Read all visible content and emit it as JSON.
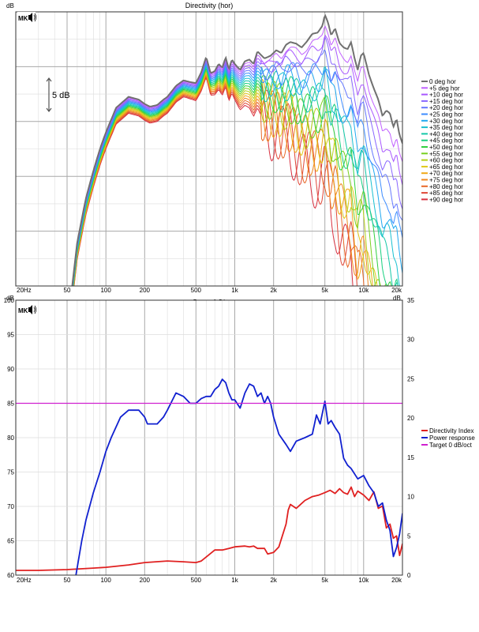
{
  "colors": {
    "background": "#ffffff",
    "plot_bg": "#ffffff",
    "grid_major": "#a8a8a8",
    "grid_minor": "#dcdcdc",
    "frame": "#333333"
  },
  "watermark_label": "MK",
  "scale_marker": {
    "label": "5 dB",
    "icon": "double-arrow-icon"
  },
  "chart_data": [
    {
      "type": "line",
      "title": "Directivity (hor)",
      "y_unit_label": "dB",
      "x_scale": "log",
      "xlim": [
        20,
        20000
      ],
      "ylim": [
        -40,
        10
      ],
      "x_tick_labels": [
        {
          "v": 20,
          "label": "20Hz"
        },
        {
          "v": 50,
          "label": "50"
        },
        {
          "v": 100,
          "label": "100"
        },
        {
          "v": 200,
          "label": "200"
        },
        {
          "v": 500,
          "label": "500"
        },
        {
          "v": 1000,
          "label": "1k"
        },
        {
          "v": 2000,
          "label": "2k"
        },
        {
          "v": 5000,
          "label": "5k"
        },
        {
          "v": 10000,
          "label": "10k"
        },
        {
          "v": 20000,
          "label": "20k"
        }
      ],
      "grid": true,
      "legend_position": "right",
      "reference_series": {
        "x": [
          50,
          60,
          70,
          80,
          90,
          100,
          120,
          150,
          180,
          200,
          220,
          250,
          280,
          300,
          350,
          400,
          450,
          500,
          550,
          600,
          650,
          700,
          750,
          800,
          850,
          900,
          950,
          1000,
          1100,
          1200,
          1300,
          1400,
          1500,
          1700,
          1900,
          2100,
          2300,
          2500,
          2700,
          3000,
          3300,
          3600,
          4000,
          4400,
          4800,
          5000,
          5300,
          5600,
          6000,
          6500,
          7000,
          7500,
          8000,
          8500,
          9000,
          9500,
          10000,
          11000,
          12000,
          13000,
          14000,
          15000,
          16000,
          17000,
          18000,
          19000,
          20000
        ],
        "values": [
          -48,
          -32,
          -24,
          -19,
          -15,
          -12,
          -7.5,
          -5.5,
          -6,
          -6.8,
          -7.3,
          -7,
          -6,
          -5.5,
          -3.5,
          -2.5,
          -2.8,
          -3,
          -1,
          1.8,
          -1.2,
          -0.8,
          0.5,
          -0.2,
          1.7,
          -0.5,
          1.3,
          0.5,
          -0.6,
          1,
          1.3,
          0.5,
          2.8,
          1.5,
          2,
          3,
          2.5,
          4,
          4.5,
          4.2,
          3.5,
          4.5,
          6,
          6.2,
          7.5,
          9.5,
          8,
          5.7,
          7,
          4.3,
          3.5,
          3.2,
          4.5,
          1.5,
          -0.6,
          2,
          2.5,
          -1.5,
          -4,
          -6,
          -9,
          -8,
          -8.5,
          -11,
          -9.5,
          -12.5,
          -14
        ]
      },
      "series": [
        {
          "name": "0 deg hor",
          "color": "#707070"
        },
        {
          "name": "+5 deg hor",
          "color": "#c060ff"
        },
        {
          "name": "+10 deg hor",
          "color": "#a858ff"
        },
        {
          "name": "+15 deg hor",
          "color": "#8866ff"
        },
        {
          "name": "+20 deg hor",
          "color": "#6478ff"
        },
        {
          "name": "+25 deg hor",
          "color": "#3c8cff"
        },
        {
          "name": "+30 deg hor",
          "color": "#20a8f0"
        },
        {
          "name": "+35 deg hor",
          "color": "#18c0d0"
        },
        {
          "name": "+40 deg hor",
          "color": "#14c8a8"
        },
        {
          "name": "+45 deg hor",
          "color": "#18d080"
        },
        {
          "name": "+50 deg hor",
          "color": "#30d040"
        },
        {
          "name": "+55 deg hor",
          "color": "#78d020"
        },
        {
          "name": "+60 deg hor",
          "color": "#b4d018"
        },
        {
          "name": "+65 deg hor",
          "color": "#e0c818"
        },
        {
          "name": "+70 deg hor",
          "color": "#f0a818"
        },
        {
          "name": "+75 deg hor",
          "color": "#f08820"
        },
        {
          "name": "+80 deg hor",
          "color": "#e86828"
        },
        {
          "name": "+85 deg hor",
          "color": "#e04838"
        },
        {
          "name": "+90 deg hor",
          "color": "#d83040"
        }
      ]
    },
    {
      "type": "line",
      "title": "Power & DI",
      "left_unit_label": "dB",
      "right_unit_label": "dB",
      "x_scale": "log",
      "xlim": [
        20,
        20000
      ],
      "ylim_left": [
        60,
        100
      ],
      "ylim_right": [
        0,
        35
      ],
      "y_left_ticks": [
        "60",
        "65",
        "70",
        "75",
        "80",
        "85",
        "90",
        "95",
        "100"
      ],
      "y_right_ticks": [
        "0",
        "5",
        "10",
        "15",
        "20",
        "25",
        "30",
        "35"
      ],
      "x_tick_labels": [
        {
          "v": 20,
          "label": "20Hz"
        },
        {
          "v": 50,
          "label": "50"
        },
        {
          "v": 100,
          "label": "100"
        },
        {
          "v": 200,
          "label": "200"
        },
        {
          "v": 500,
          "label": "500"
        },
        {
          "v": 1000,
          "label": "1k"
        },
        {
          "v": 2000,
          "label": "2k"
        },
        {
          "v": 5000,
          "label": "5k"
        },
        {
          "v": 10000,
          "label": "10k"
        },
        {
          "v": 20000,
          "label": "20k"
        }
      ],
      "grid": true,
      "legend_position": "right",
      "series": [
        {
          "name": "Directivity Index",
          "color": "#e02020",
          "axis": "right",
          "x": [
            20,
            30,
            50,
            80,
            100,
            150,
            200,
            300,
            400,
            500,
            550,
            600,
            700,
            800,
            900,
            1000,
            1200,
            1300,
            1400,
            1500,
            1700,
            1800,
            2000,
            2200,
            2500,
            2600,
            2700,
            3000,
            3500,
            4000,
            4500,
            5000,
            5500,
            6000,
            6500,
            7000,
            7500,
            8000,
            8500,
            9000,
            10000,
            11000,
            12000,
            13000,
            14000,
            15000,
            16000,
            17000,
            18000,
            19000,
            20000
          ],
          "values": [
            0.6,
            0.6,
            0.7,
            0.9,
            1,
            1.3,
            1.6,
            1.8,
            1.7,
            1.6,
            1.8,
            2.3,
            3.2,
            3.2,
            3.4,
            3.6,
            3.7,
            3.6,
            3.7,
            3.4,
            3.4,
            2.7,
            2.9,
            3.6,
            6.5,
            8.3,
            9,
            8.5,
            9.5,
            10,
            10.2,
            10.5,
            10.8,
            10.4,
            11,
            10.5,
            10.3,
            11.2,
            10,
            10.7,
            10.2,
            9.5,
            10.6,
            8.5,
            8.8,
            6,
            6.5,
            4.7,
            5,
            2.5,
            4
          ]
        },
        {
          "name": "Power response",
          "color": "#1020d0",
          "axis": "left",
          "x": [
            55,
            65,
            70,
            80,
            90,
            100,
            110,
            130,
            150,
            170,
            180,
            200,
            210,
            230,
            250,
            280,
            300,
            350,
            400,
            450,
            500,
            550,
            600,
            650,
            700,
            750,
            800,
            850,
            900,
            950,
            1000,
            1100,
            1200,
            1300,
            1400,
            1500,
            1600,
            1700,
            1800,
            1900,
            2000,
            2200,
            2500,
            2700,
            3000,
            3500,
            4000,
            4300,
            4600,
            5000,
            5300,
            5600,
            6000,
            6500,
            7000,
            7500,
            8000,
            9000,
            10000,
            11000,
            12000,
            13000,
            14000,
            15000,
            16000,
            17000,
            18000,
            19000,
            20000
          ],
          "values": [
            57,
            65,
            68,
            72,
            75,
            78,
            80,
            83,
            84,
            84,
            84,
            83,
            82,
            82,
            82,
            83,
            84,
            86.5,
            86,
            85,
            85,
            85.7,
            86,
            86,
            87,
            87.5,
            88.5,
            88,
            86.5,
            85.5,
            85.5,
            84.3,
            86.5,
            87.8,
            87.5,
            86,
            86.5,
            85,
            86,
            85,
            83,
            80.5,
            79,
            78,
            79.5,
            80,
            80.5,
            83.3,
            82,
            85.3,
            82,
            82.5,
            81.5,
            80.5,
            77,
            76,
            75.5,
            74,
            74.5,
            73,
            72,
            70,
            70.5,
            68,
            66.5,
            62.7,
            64,
            66,
            69
          ]
        },
        {
          "name": "Target 0 dB/oct",
          "color": "#d020d0",
          "axis": "left",
          "x": [
            20,
            20000
          ],
          "values": [
            85,
            85
          ]
        }
      ]
    }
  ]
}
